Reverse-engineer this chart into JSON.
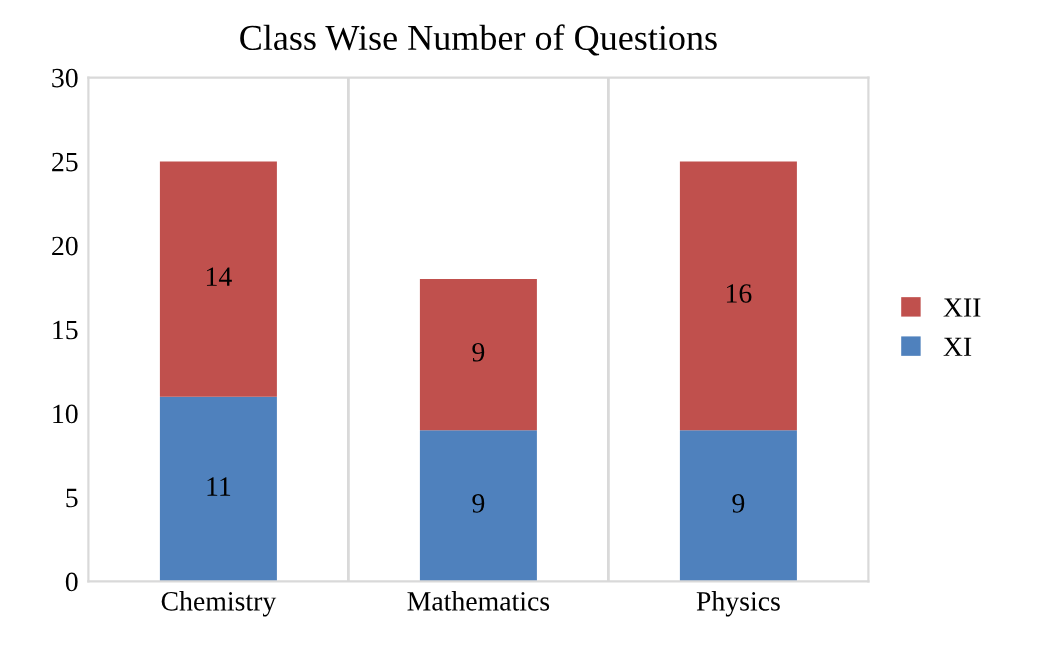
{
  "chart_data": {
    "type": "bar",
    "title": "Class Wise Number of Questions",
    "categories": [
      "Chemistry",
      "Mathematics",
      "Physics"
    ],
    "stacked": true,
    "series": [
      {
        "name": "XI",
        "color": "#4f81bd",
        "values": [
          11,
          9,
          9
        ]
      },
      {
        "name": "XII",
        "color": "#c0504d",
        "values": [
          14,
          9,
          16
        ]
      }
    ],
    "ylim": [
      0,
      30
    ],
    "yticks": [
      0,
      5,
      10,
      15,
      20,
      25,
      30
    ],
    "grid": "x",
    "legend": "right",
    "data_labels": true
  }
}
